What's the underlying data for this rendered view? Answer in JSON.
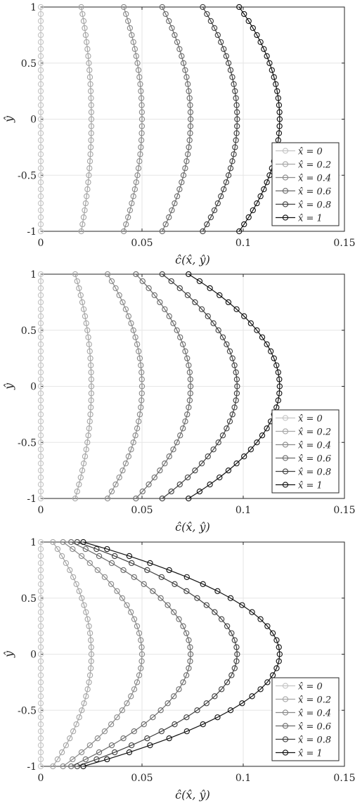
{
  "chart_data": [
    {
      "type": "line",
      "xlabel": "ĉ(x̂, ŷ)",
      "ylabel": "ŷ",
      "xlim": [
        0,
        0.15
      ],
      "ylim": [
        -1,
        1
      ],
      "xticks": [
        "0",
        "0.05",
        "0.1",
        "0.15"
      ],
      "yticks": [
        "1",
        "0.5",
        "0",
        "-0.5",
        "-1"
      ],
      "grid": true,
      "legend_position": "bottom-right",
      "marker": "circle",
      "series": [
        {
          "name": "x̂ = 0",
          "color": "#c4c4c4",
          "x_edge": 0.0,
          "x_mid": 0.0
        },
        {
          "name": "x̂ = 0.2",
          "color": "#a6a6a6",
          "x_edge": 0.02,
          "x_mid": 0.025
        },
        {
          "name": "x̂ = 0.4",
          "color": "#8a8a8a",
          "x_edge": 0.041,
          "x_mid": 0.05
        },
        {
          "name": "x̂ = 0.6",
          "color": "#6b6b6b",
          "x_edge": 0.06,
          "x_mid": 0.074
        },
        {
          "name": "x̂ = 0.8",
          "color": "#3f3f3f",
          "x_edge": 0.08,
          "x_mid": 0.097
        },
        {
          "name": "x̂ = 1",
          "color": "#111111",
          "x_edge": 0.098,
          "x_mid": 0.118
        }
      ]
    },
    {
      "type": "line",
      "xlabel": "ĉ(x̂, ŷ)",
      "ylabel": "ŷ",
      "xlim": [
        0,
        0.15
      ],
      "ylim": [
        -1,
        1
      ],
      "xticks": [
        "0",
        "0.05",
        "0.1",
        "0.15"
      ],
      "yticks": [
        "1",
        "0.5",
        "0",
        "-0.5",
        "-1"
      ],
      "grid": true,
      "legend_position": "bottom-right",
      "marker": "circle",
      "series": [
        {
          "name": "x̂ = 0",
          "color": "#c4c4c4",
          "x_edge": 0.0,
          "x_mid": 0.0
        },
        {
          "name": "x̂ = 0.2",
          "color": "#a6a6a6",
          "x_edge": 0.017,
          "x_mid": 0.025
        },
        {
          "name": "x̂ = 0.4",
          "color": "#8a8a8a",
          "x_edge": 0.033,
          "x_mid": 0.05
        },
        {
          "name": "x̂ = 0.6",
          "color": "#6b6b6b",
          "x_edge": 0.047,
          "x_mid": 0.074
        },
        {
          "name": "x̂ = 0.8",
          "color": "#3f3f3f",
          "x_edge": 0.06,
          "x_mid": 0.097
        },
        {
          "name": "x̂ = 1",
          "color": "#111111",
          "x_edge": 0.073,
          "x_mid": 0.118
        }
      ]
    },
    {
      "type": "line",
      "xlabel": "ĉ(x̂, ŷ)",
      "ylabel": "ŷ",
      "xlim": [
        0,
        0.15
      ],
      "ylim": [
        -1,
        1
      ],
      "xticks": [
        "0",
        "0.05",
        "0.1",
        "0.15"
      ],
      "yticks": [
        "1",
        "0.5",
        "0",
        "-0.5",
        "-1"
      ],
      "grid": true,
      "legend_position": "bottom-right",
      "marker": "circle",
      "series": [
        {
          "name": "x̂ = 0",
          "color": "#c4c4c4",
          "x_edge": 0.0,
          "x_mid": 0.0
        },
        {
          "name": "x̂ = 0.2",
          "color": "#a6a6a6",
          "x_edge": 0.006,
          "x_mid": 0.025
        },
        {
          "name": "x̂ = 0.4",
          "color": "#8a8a8a",
          "x_edge": 0.011,
          "x_mid": 0.05
        },
        {
          "name": "x̂ = 0.6",
          "color": "#6b6b6b",
          "x_edge": 0.015,
          "x_mid": 0.074
        },
        {
          "name": "x̂ = 0.8",
          "color": "#3f3f3f",
          "x_edge": 0.018,
          "x_mid": 0.097
        },
        {
          "name": "x̂ = 1",
          "color": "#111111",
          "x_edge": 0.021,
          "x_mid": 0.118
        }
      ]
    }
  ]
}
